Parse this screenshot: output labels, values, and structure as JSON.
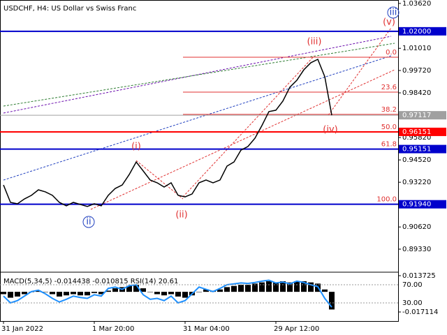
{
  "chart_data": {
    "type": "line",
    "title": "USDCHF, H4:  US Dollar vs Swiss Franc",
    "categories": [
      "31 Jan 2022",
      null,
      null,
      null,
      null,
      null,
      null,
      null,
      null,
      null,
      null,
      null,
      null,
      "1 Mar 20:00",
      null,
      null,
      null,
      null,
      null,
      null,
      null,
      null,
      null,
      null,
      null,
      null,
      "31 Mar 04:00",
      null,
      null,
      null,
      null,
      null,
      null,
      null,
      null,
      null,
      null,
      null,
      null,
      "29 Apr 12:00",
      null,
      null,
      null,
      null,
      null,
      null,
      null,
      null
    ],
    "series": [
      {
        "color": "#000000",
        "values": [
          0.9306,
          0.9205,
          0.9197,
          0.9225,
          0.9246,
          0.9278,
          0.9266,
          0.9246,
          0.9205,
          0.9185,
          0.9205,
          0.9193,
          0.9181,
          0.9197,
          0.9185,
          0.9246,
          0.9286,
          0.9306,
          0.9367,
          0.944,
          0.9388,
          0.9335,
          0.9319,
          0.9294,
          0.9319,
          0.9246,
          0.9237,
          0.9254,
          0.9319,
          0.9335,
          0.9319,
          0.9335,
          0.9416,
          0.944,
          0.9509,
          0.953,
          0.9578,
          0.9652,
          0.9733,
          0.9741,
          0.9794,
          0.9875,
          0.9915,
          0.9976,
          1.0017,
          1.0037,
          0.9936,
          0.9712
        ]
      }
    ],
    "ylim": [
      0.8799,
      1.0382
    ],
    "yticks": [
      {
        "value": 1.0362,
        "label": "1.03620"
      },
      {
        "value": 1.0101,
        "label": "1.01010"
      },
      {
        "value": 0.9972,
        "label": "0.99720"
      },
      {
        "value": 0.9842,
        "label": "0.98420"
      },
      {
        "value": 0.9582,
        "label": "0.95820"
      },
      {
        "value": 0.9452,
        "label": "0.94520"
      },
      {
        "value": 0.9322,
        "label": "0.93220"
      },
      {
        "value": 0.9062,
        "label": "0.90620"
      },
      {
        "value": 0.8933,
        "label": "0.89330"
      }
    ],
    "levels": [
      {
        "value": 1.02,
        "label": "1.02000",
        "color": "#0000cc"
      },
      {
        "value": 0.97117,
        "label": "0.97117",
        "color": "#a0a0a0"
      },
      {
        "value": 0.96151,
        "label": "0.96151",
        "color": "#ff0000"
      },
      {
        "value": 0.95151,
        "label": "0.95151",
        "color": "#0000cc"
      },
      {
        "value": 0.9194,
        "label": "0.91940",
        "color": "#0000cc"
      }
    ],
    "fibonacci": {
      "color": "#e03030",
      "levels": [
        {
          "label": "0.0",
          "price": 1.0049
        },
        {
          "label": "23.6",
          "price": 0.9846
        },
        {
          "label": "38.2",
          "price": 0.9717
        },
        {
          "label": "50.0",
          "price": 0.9615
        },
        {
          "label": "61.8",
          "price": 0.9515
        },
        {
          "label": "100.0",
          "price": 0.9194
        }
      ]
    },
    "annotations": [
      {
        "text": "(iii)",
        "color": "#e03030"
      },
      {
        "text": "(v)",
        "color": "#e03030"
      },
      {
        "text": "iii",
        "color": "#1f3fbf"
      },
      {
        "text": "(i)",
        "color": "#e03030"
      },
      {
        "text": "(ii)",
        "color": "#e03030"
      },
      {
        "text": "ii",
        "color": "#1f3fbf"
      },
      {
        "text": "(iv)",
        "color": "#e03030"
      }
    ],
    "indicator": {
      "header": "MACD(5,34,5) -0.014438 -0.010815 RSI(14) 20.61",
      "macd": [
        -0.002,
        -0.005,
        -0.004,
        -0.002,
        0,
        0.001,
        0,
        -0.002,
        -0.004,
        -0.003,
        -0.002,
        -0.003,
        -0.003,
        -0.001,
        -0.002,
        0.001,
        0.003,
        0.004,
        0.005,
        0.006,
        0.003,
        0,
        -0.002,
        -0.003,
        -0.002,
        -0.004,
        -0.005,
        -0.003,
        0,
        0.002,
        0.001,
        0.002,
        0.004,
        0.005,
        0.006,
        0.006,
        0.007,
        0.008,
        0.009,
        0.008,
        0.009,
        0.008,
        0.009,
        0.009,
        0.008,
        0.007,
        0.002,
        -0.015
      ],
      "rsi": [
        45,
        30,
        35,
        45,
        55,
        58,
        50,
        40,
        32,
        38,
        45,
        42,
        40,
        48,
        45,
        62,
        65,
        60,
        68,
        70,
        48,
        38,
        40,
        35,
        45,
        30,
        35,
        50,
        65,
        60,
        55,
        62,
        70,
        72,
        74,
        73,
        75,
        78,
        80,
        74,
        76,
        72,
        78,
        75,
        70,
        66,
        40,
        20.61
      ],
      "ylim": [
        -0.02483,
        0.0161
      ],
      "yticks": [
        {
          "value": 0.013725,
          "label": "0.013725"
        },
        {
          "value": -0.017114,
          "label": "-0.017114"
        }
      ],
      "y2lim": [
        -10,
        96.2
      ],
      "y2ticks": [
        {
          "value": 70,
          "label": "70.00"
        },
        {
          "value": 30,
          "label": "30.00"
        }
      ],
      "rsi_color": "#1e90ff"
    }
  }
}
